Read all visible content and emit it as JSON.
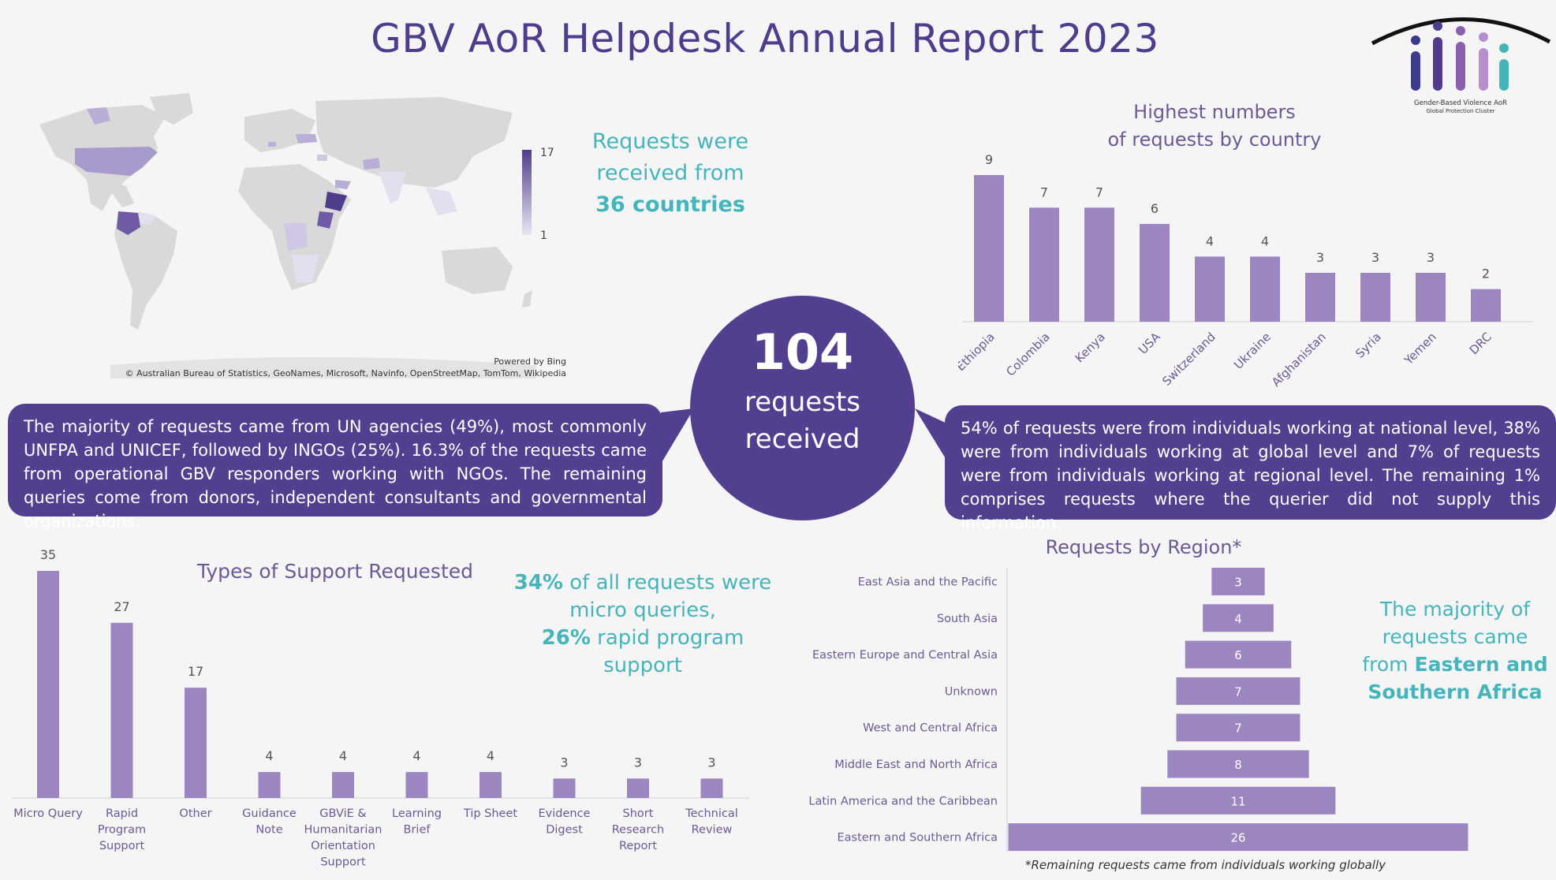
{
  "title": "GBV AoR Helpdesk Annual Report 2023",
  "logo": {
    "line1": "Gender-Based Violence AoR",
    "line2": "Global Protection Cluster",
    "figure_colors": [
      "#3a3b8c",
      "#4f3d8b",
      "#8a5fb0",
      "#b68fd0",
      "#45b5bb"
    ]
  },
  "map": {
    "legend_max": "17",
    "legend_min": "1",
    "powered_by": "Powered by Bing",
    "credit": "© Australian Bureau of Statistics, GeoNames, Microsoft, Navinfo, OpenStreetMap, TomTom, Wikipedia",
    "fill_low": "#e6e2f0",
    "fill_high": "#4f3d8b",
    "base_color": "#d9d9d9"
  },
  "countries_text": {
    "line1": "Requests were",
    "line2": "received from",
    "line3": "36 countries"
  },
  "total": {
    "number": "104",
    "line1": "requests",
    "line2": "received"
  },
  "callout_left": "The majority of requests came from UN agencies (49%), most commonly UNFPA and UNICEF, followed by INGOs (25%). 16.3% of the requests came from operational GBV responders working with NGOs. The remaining queries come from donors, independent consultants and governmental organizations.",
  "callout_right": "54% of requests were from individuals working at national level, 38% were from individuals working at global level and 7% of requests were from individuals working at regional level. The remaining 1% comprises requests where the querier did not supply this information.",
  "micro_text": {
    "line1a": "34%",
    "line1b": " of all requests were",
    "line2": "micro queries,",
    "line3a": "26%",
    "line3b": " rapid program",
    "line4": "support"
  },
  "region_text": {
    "line1": "The majority of",
    "line2": "requests came",
    "line3a": "from ",
    "line3b": "Eastern and",
    "line4": "Southern Africa"
  },
  "footnote": "*Remaining requests came from individuals working globally",
  "colors": {
    "bar": "#9b86c0",
    "dark_purple": "#533f8f",
    "teal": "#45b5bb",
    "axis_text": "#6b5a93"
  },
  "chart_data": [
    {
      "type": "bar",
      "title": "Highest numbers of requests by country",
      "title_line1": "Highest numbers",
      "title_line2": "of requests by country",
      "categories": [
        "Ethiopia",
        "Colombia",
        "Kenya",
        "USA",
        "Switzerland",
        "Ukraine",
        "Afghanistan",
        "Syria",
        "Yemen",
        "DRC"
      ],
      "values": [
        9,
        7,
        7,
        6,
        4,
        4,
        3,
        3,
        3,
        2
      ],
      "ylim": [
        0,
        9
      ],
      "grid": false,
      "data_labels": true
    },
    {
      "type": "bar",
      "title": "Types of Support Requested",
      "categories": [
        "Micro Query",
        "Rapid Program Support",
        "Other",
        "Guidance Note",
        "GBViE & Humanitarian Orientation Support",
        "Learning Brief",
        "Tip Sheet",
        "Evidence Digest",
        "Short Research Report",
        "Technical Review"
      ],
      "category_lines": [
        [
          "Micro Query"
        ],
        [
          "Rapid",
          "Program",
          "Support"
        ],
        [
          "Other"
        ],
        [
          "Guidance",
          "Note"
        ],
        [
          "GBViE &",
          "Humanitarian",
          "Orientation",
          "Support"
        ],
        [
          "Learning",
          "Brief"
        ],
        [
          "Tip Sheet"
        ],
        [
          "Evidence",
          "Digest"
        ],
        [
          "Short",
          "Research",
          "Report"
        ],
        [
          "Technical",
          "Review"
        ]
      ],
      "values": [
        35,
        27,
        17,
        4,
        4,
        4,
        4,
        3,
        3,
        3
      ],
      "ylim": [
        0,
        35
      ],
      "grid": false,
      "data_labels": true
    },
    {
      "type": "bar",
      "orientation": "horizontal-centered",
      "title": "Requests by Region*",
      "categories": [
        "East Asia and the Pacific",
        "South Asia",
        "Eastern Europe and Central Asia",
        "Unknown",
        "West and Central Africa",
        "Middle East and North Africa",
        "Latin America and the Caribbean",
        "Eastern and Southern Africa"
      ],
      "values": [
        3,
        4,
        6,
        7,
        7,
        8,
        11,
        26
      ],
      "xlim": [
        0,
        26
      ],
      "grid": false,
      "data_labels": true
    }
  ]
}
